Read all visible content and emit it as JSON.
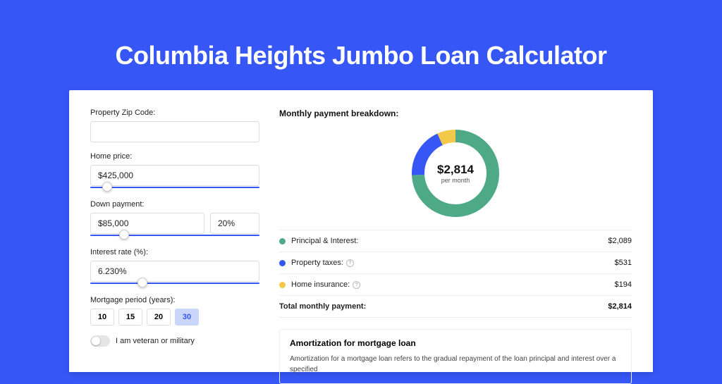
{
  "title": "Columbia Heights Jumbo Loan Calculator",
  "colors": {
    "page_bg": "#3656f5",
    "card_bg": "#ffffff",
    "accent": "#3656f5",
    "input_border": "#dcdcdc"
  },
  "form": {
    "zip": {
      "label": "Property Zip Code:",
      "value": ""
    },
    "home_price": {
      "label": "Home price:",
      "value": "$425,000",
      "slider_pct": 10
    },
    "down_payment": {
      "label": "Down payment:",
      "amount": "$85,000",
      "percent": "20%",
      "slider_pct": 20
    },
    "interest_rate": {
      "label": "Interest rate (%):",
      "value": "6.230%",
      "slider_pct": 31
    },
    "mortgage_period": {
      "label": "Mortgage period (years):",
      "options": [
        "10",
        "15",
        "20",
        "30"
      ],
      "selected": "30"
    },
    "veteran": {
      "label": "I am veteran or military",
      "value": false
    }
  },
  "breakdown": {
    "title": "Monthly payment breakdown:",
    "donut": {
      "center_amount": "$2,814",
      "center_sub": "per month",
      "thickness": 18,
      "slices": [
        {
          "key": "principal_interest",
          "value": 2089,
          "color": "#4ea986"
        },
        {
          "key": "property_taxes",
          "value": 531,
          "color": "#3656f5"
        },
        {
          "key": "home_insurance",
          "value": 194,
          "color": "#f4c94a"
        }
      ]
    },
    "rows": [
      {
        "swatch": "#4ea986",
        "label": "Principal & Interest:",
        "info": false,
        "value": "$2,089"
      },
      {
        "swatch": "#3656f5",
        "label": "Property taxes:",
        "info": true,
        "value": "$531"
      },
      {
        "swatch": "#f4c94a",
        "label": "Home insurance:",
        "info": true,
        "value": "$194"
      }
    ],
    "total": {
      "label": "Total monthly payment:",
      "value": "$2,814"
    }
  },
  "amortization": {
    "title": "Amortization for mortgage loan",
    "text": "Amortization for a mortgage loan refers to the gradual repayment of the loan principal and interest over a specified"
  }
}
